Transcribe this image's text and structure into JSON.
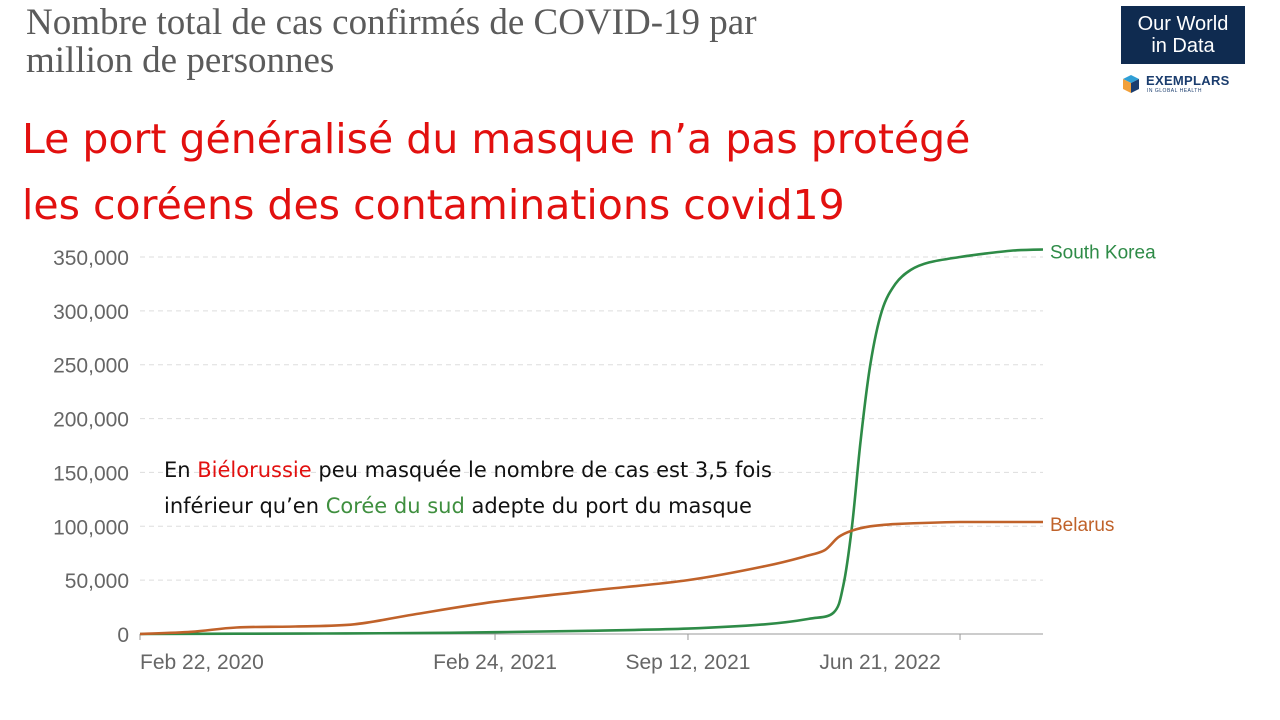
{
  "title_line1": "Nombre total de cas confirmés de COVID-19 par",
  "title_line2": "million de personnes",
  "headline_line1": "Le port généralisé du masque n’a pas protégé",
  "headline_line2": "les coréens des contaminations covid19",
  "logo": {
    "line1": "Our World",
    "line2": "in Data",
    "exemplars": "EXEMPLARS",
    "exemplars_sub": "IN GLOBAL HEALTH",
    "bg_color": "#0f2b50"
  },
  "annotation": {
    "part1": "En ",
    "belarus_fr": "Biélorussie",
    "part2": " peu masquée le nombre de cas est 3,5 fois",
    "part3": "inférieur qu’en ",
    "korea_fr": "Corée du sud",
    "part4": " adepte du port du masque",
    "belarus_color": "#e2100f",
    "korea_color": "#3f8f3f"
  },
  "chart_data": {
    "type": "line",
    "title": "Nombre total de cas confirmés de COVID-19 par million de personnes",
    "xlabel": "",
    "ylabel": "",
    "ylim": [
      0,
      350000
    ],
    "yticks": [
      0,
      50000,
      100000,
      150000,
      200000,
      250000,
      300000,
      350000
    ],
    "ytick_labels": [
      "0",
      "50,000",
      "100,000",
      "150,000",
      "200,000",
      "250,000",
      "300,000",
      "350,000"
    ],
    "xlim": [
      "2020-02-22",
      "2022-09-15"
    ],
    "xticks": [
      "2020-02-22",
      "2021-02-24",
      "2021-09-12",
      "2022-06-21"
    ],
    "xtick_labels": [
      "Feb 22, 2020",
      "Feb 24, 2021",
      "Sep 12, 2021",
      "Jun 21, 2022"
    ],
    "grid": "horizontal dashed",
    "legend": "line end labels",
    "series": [
      {
        "name": "South Korea",
        "color": "#2e8b47",
        "x": [
          "2020-02-22",
          "2020-06-01",
          "2020-09-01",
          "2020-12-01",
          "2021-02-24",
          "2021-06-01",
          "2021-09-12",
          "2021-12-01",
          "2022-01-15",
          "2022-02-10",
          "2022-02-20",
          "2022-03-01",
          "2022-03-10",
          "2022-03-20",
          "2022-04-01",
          "2022-04-15",
          "2022-05-01",
          "2022-05-20",
          "2022-06-21",
          "2022-07-15",
          "2022-08-15",
          "2022-09-15"
        ],
        "values": [
          0,
          250,
          500,
          800,
          1700,
          3000,
          5000,
          9000,
          14000,
          20000,
          45000,
          100000,
          180000,
          250000,
          300000,
          325000,
          338000,
          345000,
          350000,
          353000,
          356000,
          357000
        ]
      },
      {
        "name": "Belarus",
        "color": "#c0622a",
        "x": [
          "2020-02-22",
          "2020-04-15",
          "2020-06-01",
          "2020-08-01",
          "2020-10-01",
          "2020-12-01",
          "2021-02-24",
          "2021-06-01",
          "2021-09-12",
          "2021-12-01",
          "2022-01-15",
          "2022-02-01",
          "2022-02-15",
          "2022-03-01",
          "2022-03-20",
          "2022-04-15",
          "2022-06-21",
          "2022-09-15"
        ],
        "values": [
          0,
          2000,
          6000,
          7000,
          9000,
          18000,
          30000,
          40000,
          50000,
          63000,
          73000,
          78000,
          90000,
          96000,
          100000,
          102000,
          104000,
          104000
        ]
      }
    ]
  }
}
